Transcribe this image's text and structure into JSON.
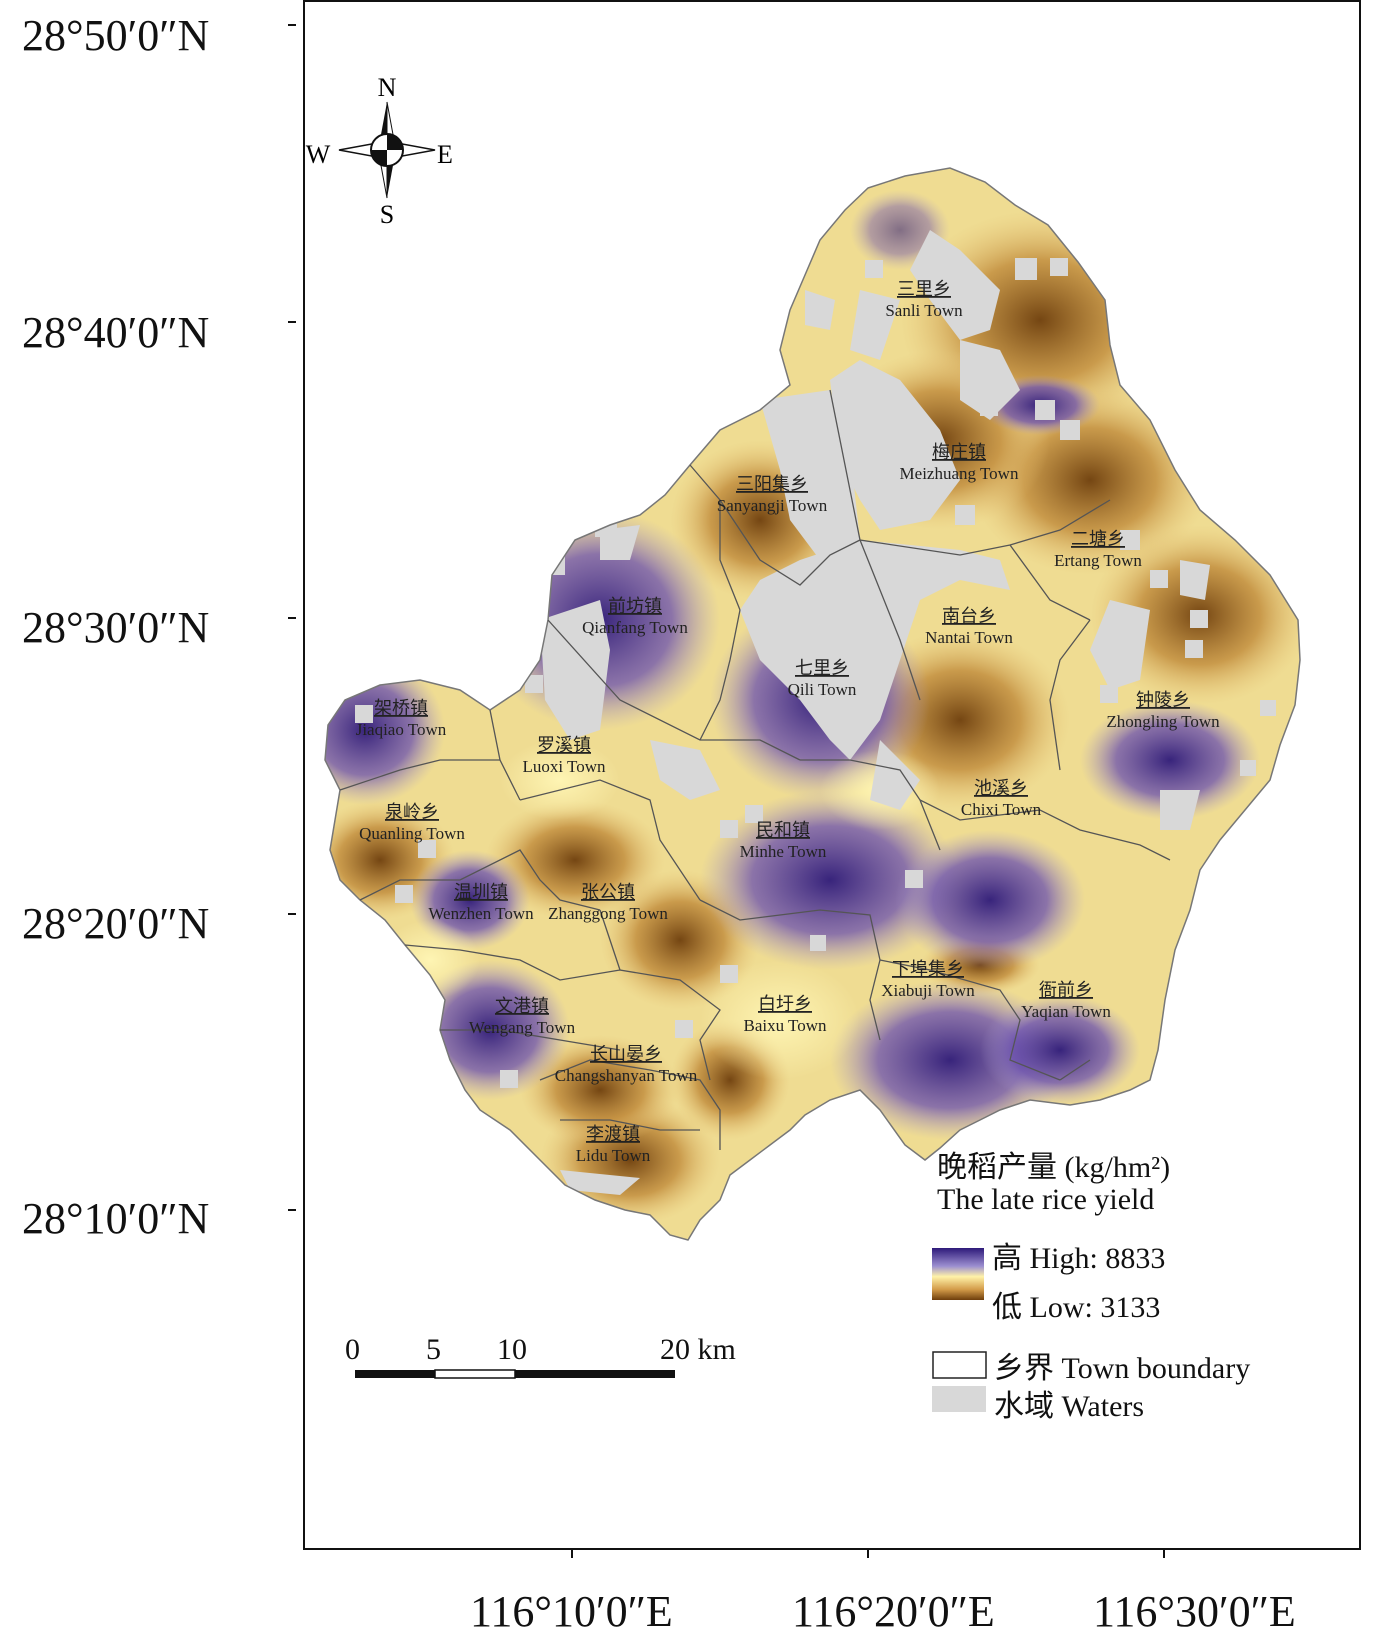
{
  "lat_labels": [
    "28°50′0″N",
    "28°40′0″N",
    "28°30′0″N",
    "28°20′0″N",
    "28°10′0″N"
  ],
  "lon_labels": [
    "116°10′0″E",
    "116°20′0″E",
    "116°30′0″E"
  ],
  "compass": {
    "n": "N",
    "s": "S",
    "e": "E",
    "w": "W"
  },
  "towns": [
    {
      "cn": "三里乡",
      "en": "Sanli Town"
    },
    {
      "cn": "梅庄镇",
      "en": "Meizhuang Town"
    },
    {
      "cn": "三阳集乡",
      "en": "Sanyangji Town"
    },
    {
      "cn": "二塘乡",
      "en": "Ertang Town"
    },
    {
      "cn": "前坊镇",
      "en": "Qianfang Town"
    },
    {
      "cn": "南台乡",
      "en": "Nantai Town"
    },
    {
      "cn": "七里乡",
      "en": "Qili Town"
    },
    {
      "cn": "钟陵乡",
      "en": "Zhongling Town"
    },
    {
      "cn": "架桥镇",
      "en": "Jiaqiao Town"
    },
    {
      "cn": "罗溪镇",
      "en": "Luoxi Town"
    },
    {
      "cn": "池溪乡",
      "en": "Chixi Town"
    },
    {
      "cn": "泉岭乡",
      "en": "Quanling Town"
    },
    {
      "cn": "民和镇",
      "en": "Minhe Town"
    },
    {
      "cn": "温圳镇",
      "en": "Wenzhen Town"
    },
    {
      "cn": "张公镇",
      "en": "Zhanggong Town"
    },
    {
      "cn": "下埠集乡",
      "en": "Xiabuji Town"
    },
    {
      "cn": "文港镇",
      "en": "Wengang Town"
    },
    {
      "cn": "白圩乡",
      "en": "Baixu Town"
    },
    {
      "cn": "衙前乡",
      "en": "Yaqian Town"
    },
    {
      "cn": "长山晏乡",
      "en": "Changshanyan Town"
    },
    {
      "cn": "李渡镇",
      "en": "Lidu Town"
    }
  ],
  "legend": {
    "title_cn": "晚稻产量 (kg/hm²)",
    "title_en": "The late rice yield",
    "high": "高 High: 8833",
    "low": "低 Low: 3133",
    "boundary": "乡界 Town boundary",
    "waters": "水域 Waters",
    "high_color": "#3a1f8a",
    "mid_color": "#fff2a8",
    "low_color": "#7a4a10",
    "water_color": "#d8d8d8"
  },
  "scale": {
    "labels": [
      "0",
      "5",
      "10",
      "20 km"
    ]
  }
}
